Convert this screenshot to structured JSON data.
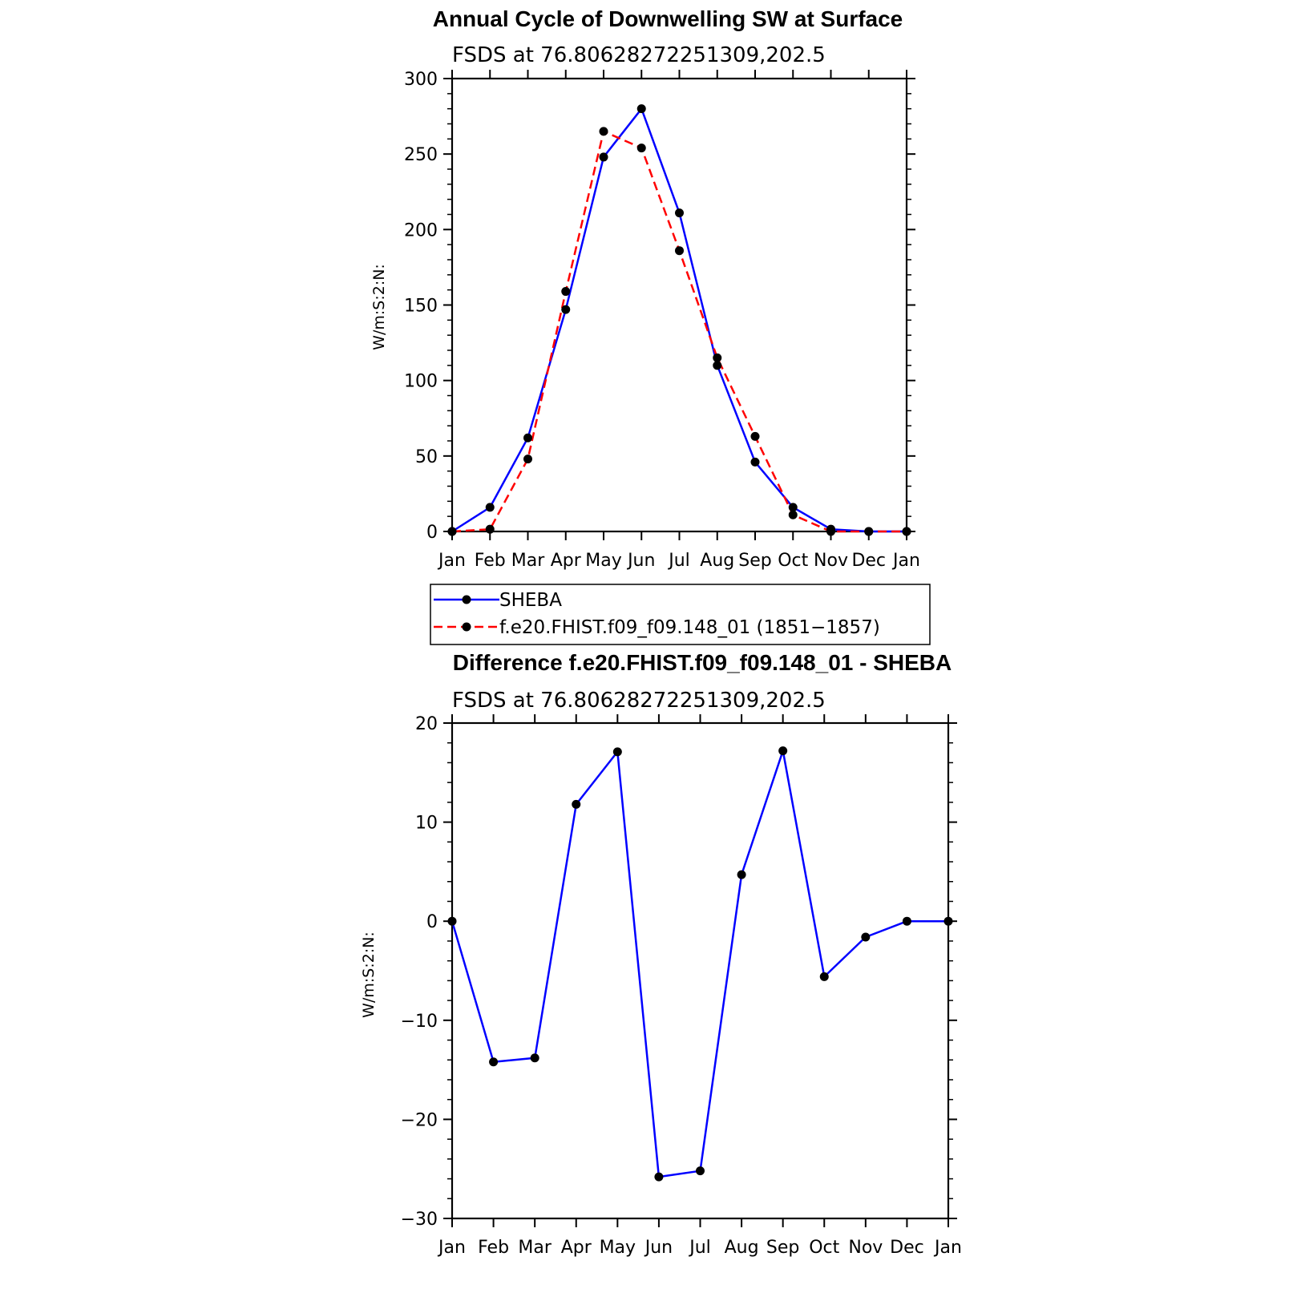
{
  "chart_data": [
    {
      "type": "line",
      "title": "Annual Cycle of Downwelling SW at Surface",
      "subtitle": "FSDS at 76.80628272251309,202.5",
      "ylabel": "W/m:S:2:N:",
      "xlabel": "",
      "categories": [
        "Jan",
        "Feb",
        "Mar",
        "Apr",
        "May",
        "Jun",
        "Jul",
        "Aug",
        "Sep",
        "Oct",
        "Nov",
        "Dec",
        "Jan"
      ],
      "ylim": [
        0,
        300
      ],
      "yticks": [
        0,
        50,
        100,
        150,
        200,
        250,
        300
      ],
      "series": [
        {
          "name": "SHEBA",
          "color": "#0000ff",
          "dash": "solid",
          "values": [
            0,
            16,
            62,
            147,
            248,
            280,
            211,
            110,
            46,
            16,
            1.5,
            0,
            0
          ]
        },
        {
          "name": "f.e20.FHIST.f09_f09.148_01 (1851−1857)",
          "color": "#ff0000",
          "dash": "dashed",
          "values": [
            0,
            1.5,
            48,
            159,
            265,
            254,
            186,
            115,
            63,
            11,
            0,
            0,
            0
          ]
        }
      ],
      "legend": "below"
    },
    {
      "type": "line",
      "title": "Difference f.e20.FHIST.f09_f09.148_01 - SHEBA",
      "subtitle": "FSDS at 76.80628272251309,202.5",
      "ylabel": "W/m:S:2:N:",
      "xlabel": "",
      "categories": [
        "Jan",
        "Feb",
        "Mar",
        "Apr",
        "May",
        "Jun",
        "Jul",
        "Aug",
        "Sep",
        "Oct",
        "Nov",
        "Dec",
        "Jan"
      ],
      "ylim": [
        -30,
        20
      ],
      "yticks": [
        -30,
        -20,
        -10,
        0,
        10,
        20
      ],
      "ytick_labels": [
        "−30",
        "−20",
        "−10",
        "0",
        "10",
        "20"
      ],
      "series": [
        {
          "color": "#0000ff",
          "dash": "solid",
          "values": [
            0,
            -14.2,
            -13.8,
            11.8,
            17.1,
            -25.8,
            -25.2,
            4.7,
            17.2,
            -5.6,
            -1.6,
            0,
            0
          ]
        }
      ]
    }
  ]
}
